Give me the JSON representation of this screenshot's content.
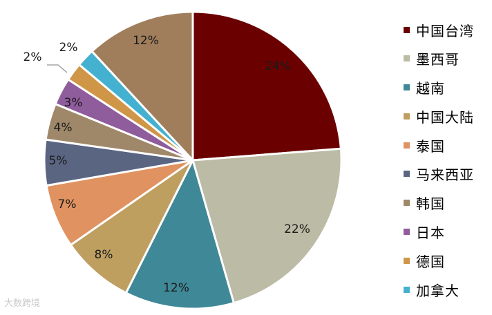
{
  "chart_data": {
    "type": "pie",
    "title": "",
    "slices": [
      {
        "label": "中国台湾",
        "value": 24,
        "text": "24%",
        "color": "#6b0000"
      },
      {
        "label": "墨西哥",
        "value": 22,
        "text": "22%",
        "color": "#bcbba5"
      },
      {
        "label": "越南",
        "value": 12,
        "text": "12%",
        "color": "#3f8897"
      },
      {
        "label": "中国大陆",
        "value": 8,
        "text": "8%",
        "color": "#bf9f60"
      },
      {
        "label": "泰国",
        "value": 7,
        "text": "7%",
        "color": "#e09260"
      },
      {
        "label": "马来西亚",
        "value": 5,
        "text": "5%",
        "color": "#5a6582"
      },
      {
        "label": "韩国",
        "value": 4,
        "text": "4%",
        "color": "#9f886a"
      },
      {
        "label": "日本",
        "value": 3,
        "text": "3%",
        "color": "#8f5c9c"
      },
      {
        "label": "德国",
        "value": 2,
        "text": "2%",
        "color": "#cf9648"
      },
      {
        "label": "加拿大",
        "value": 2,
        "text": "2%",
        "color": "#44b1d0"
      },
      {
        "label": "",
        "value": 12,
        "text": "12%",
        "color": "#a07e5c"
      }
    ],
    "legend": {
      "position": "right"
    }
  },
  "watermark": "大数跨境"
}
